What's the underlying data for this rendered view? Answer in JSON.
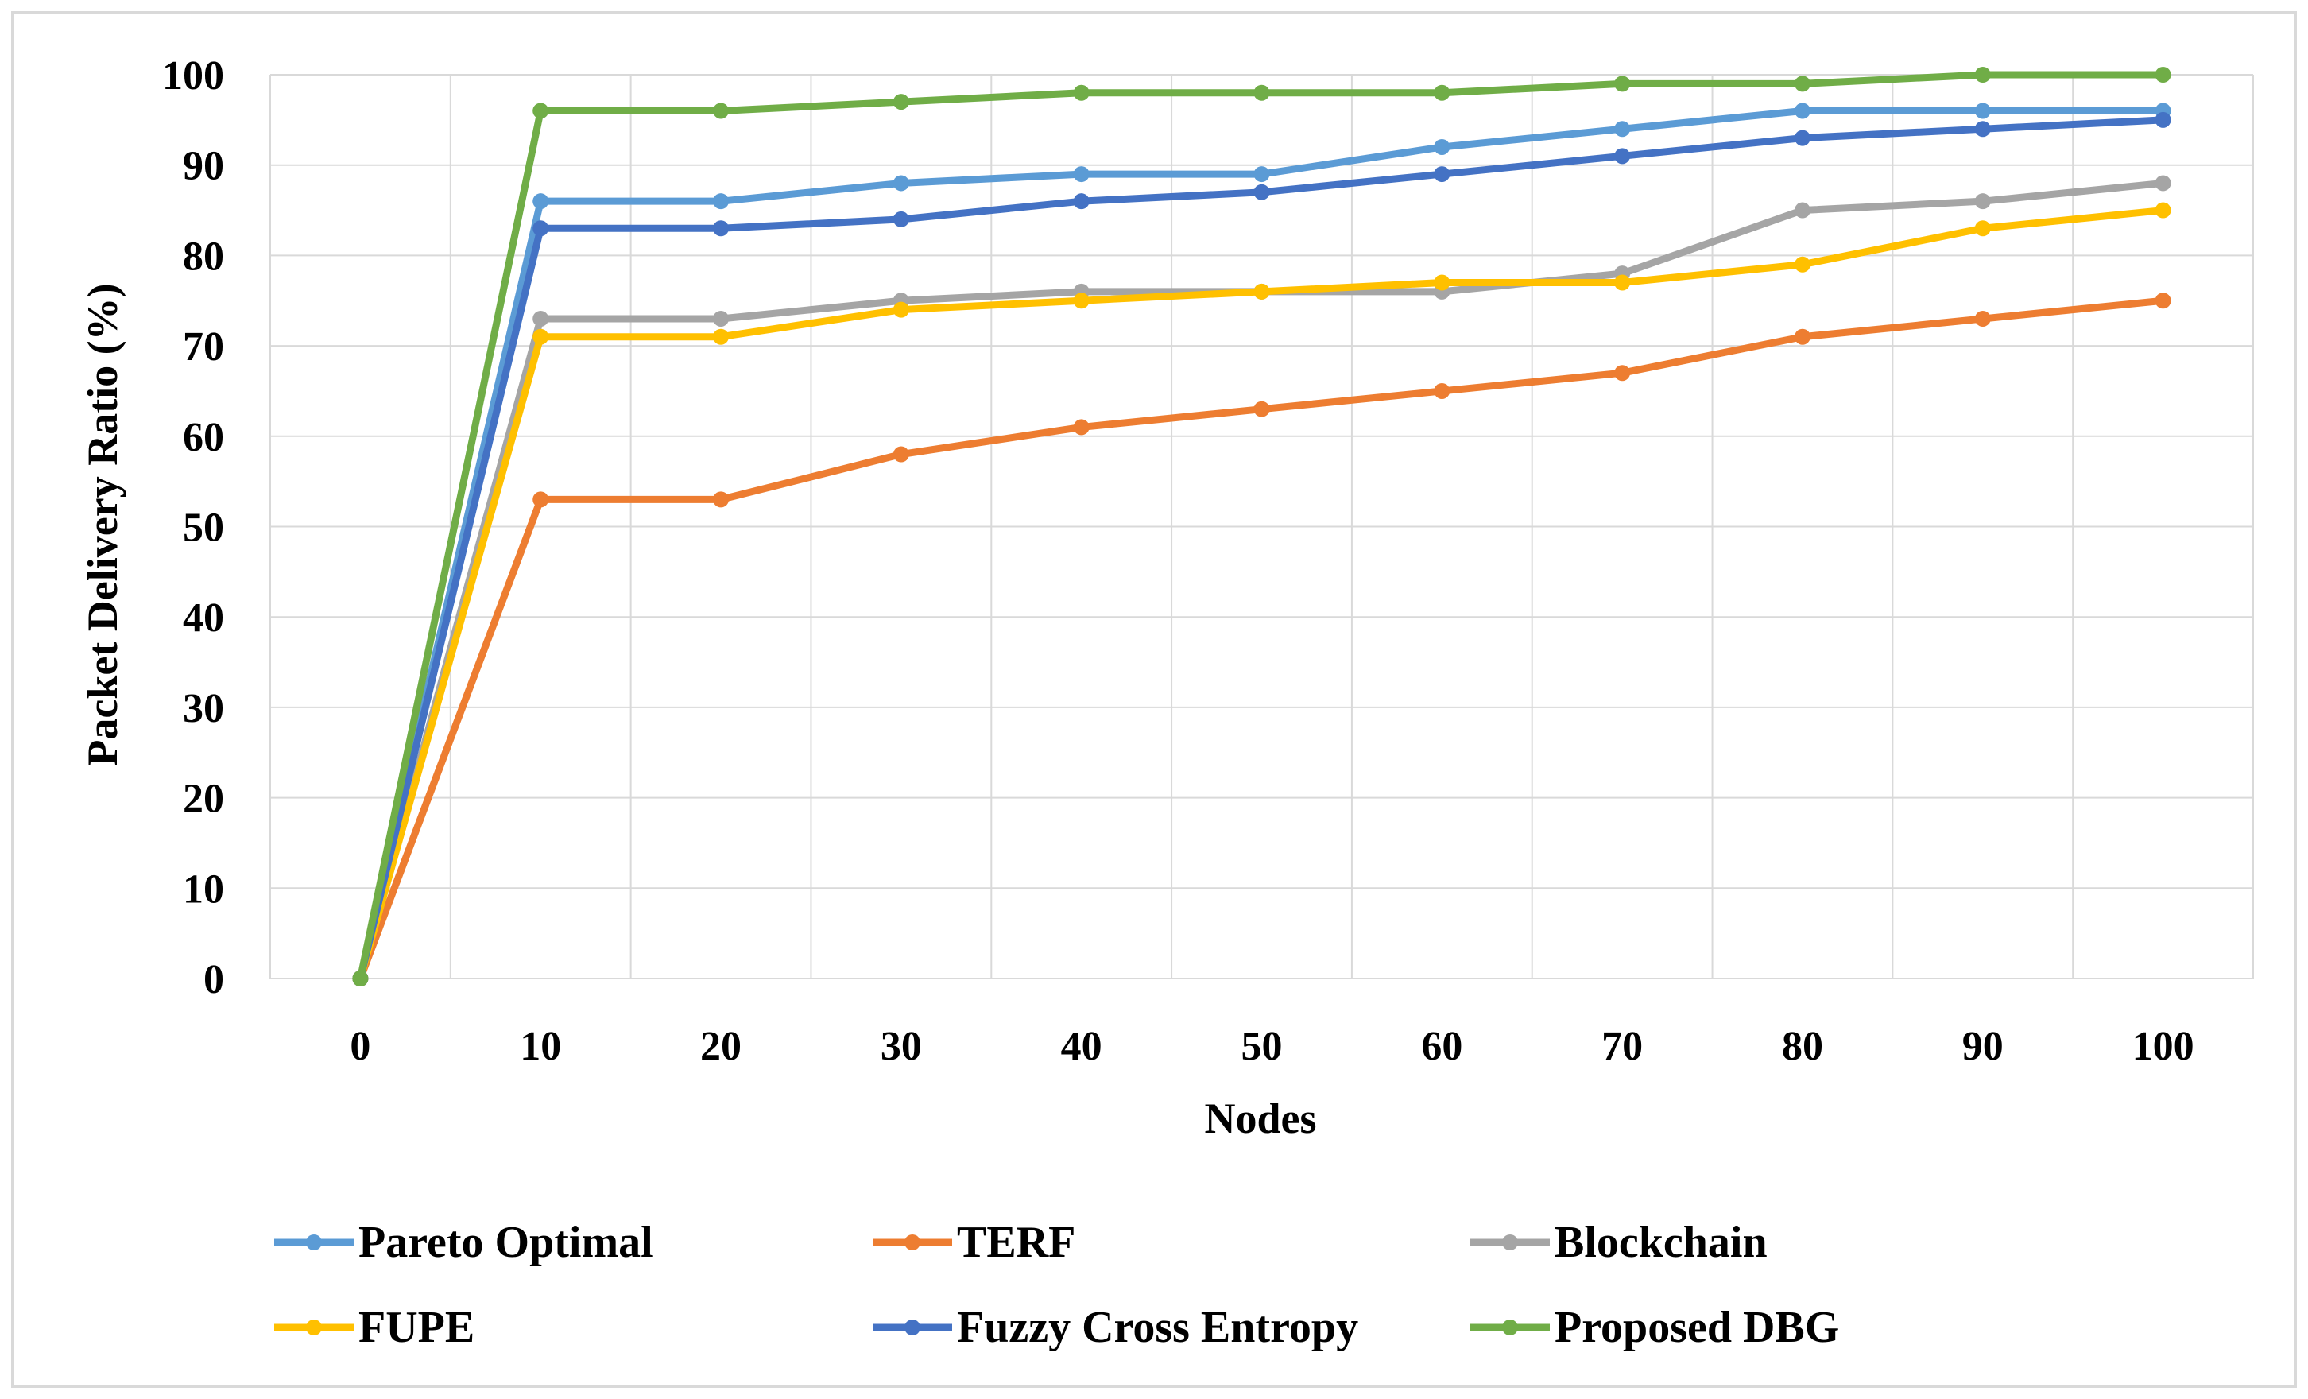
{
  "chart_data": {
    "type": "line",
    "title": "",
    "xlabel": "Nodes",
    "ylabel": "Packet Delivery Ratio (%)",
    "x": [
      0,
      10,
      20,
      30,
      40,
      50,
      60,
      70,
      80,
      90,
      100
    ],
    "x_tick_labels": [
      "0",
      "10",
      "20",
      "30",
      "40",
      "50",
      "60",
      "70",
      "80",
      "90",
      "100"
    ],
    "y_tick_labels": [
      "0",
      "10",
      "20",
      "30",
      "40",
      "50",
      "60",
      "70",
      "80",
      "90",
      "100"
    ],
    "xlim": [
      -5,
      105
    ],
    "ylim": [
      0,
      100
    ],
    "grid": true,
    "legend_position": "bottom",
    "series": [
      {
        "name": "Pareto Optimal",
        "color": "#5B9BD5",
        "values": [
          0,
          86,
          86,
          88,
          89,
          89,
          92,
          94,
          96,
          96,
          96
        ]
      },
      {
        "name": "TERF",
        "color": "#ED7D31",
        "values": [
          0,
          53,
          53,
          58,
          61,
          63,
          65,
          67,
          71,
          73,
          75
        ]
      },
      {
        "name": "Blockchain",
        "color": "#A5A5A5",
        "values": [
          0,
          73,
          73,
          75,
          76,
          76,
          76,
          78,
          85,
          86,
          88
        ]
      },
      {
        "name": "FUPE",
        "color": "#FFC000",
        "values": [
          0,
          71,
          71,
          74,
          75,
          76,
          77,
          77,
          79,
          83,
          85
        ]
      },
      {
        "name": "Fuzzy Cross Entropy",
        "color": "#4472C4",
        "values": [
          0,
          83,
          83,
          84,
          86,
          87,
          89,
          91,
          93,
          94,
          95
        ]
      },
      {
        "name": "Proposed DBG",
        "color": "#70AD47",
        "values": [
          0,
          96,
          96,
          97,
          98,
          98,
          98,
          99,
          99,
          100,
          100
        ]
      }
    ]
  }
}
